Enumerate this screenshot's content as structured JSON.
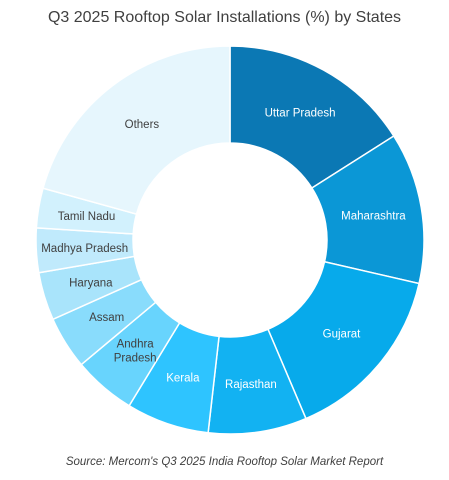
{
  "chart_data": {
    "type": "donut",
    "title": "Q3 2025 Rooftop Solar Installations (%) by States",
    "source": "Source: Mercom's Q3 2025 India Rooftop Solar Market Report",
    "legend": "none",
    "slices": [
      {
        "label": "Uttar Pradesh",
        "value": 16.0,
        "color": "#0b78b4",
        "label_color": "#ffffff"
      },
      {
        "label": "Maharashtra",
        "value": 12.6,
        "color": "#0b97d6",
        "label_color": "#ffffff"
      },
      {
        "label": "Gujarat",
        "value": 15.0,
        "color": "#07aaeb",
        "label_color": "#ffffff"
      },
      {
        "label": "Rajasthan",
        "value": 8.2,
        "color": "#12b2f2",
        "label_color": "#ffffff"
      },
      {
        "label": "Kerala",
        "value": 6.9,
        "color": "#2ec4ff",
        "label_color": "#ffffff"
      },
      {
        "label": "Andhra Pradesh",
        "value": 5.2,
        "color": "#68d4fd",
        "label_color": "#404040"
      },
      {
        "label": "Assam",
        "value": 4.4,
        "color": "#89dcfc",
        "label_color": "#404040"
      },
      {
        "label": "Haryana",
        "value": 4.0,
        "color": "#a9e4fb",
        "label_color": "#404040"
      },
      {
        "label": "Madhya Pradesh",
        "value": 3.7,
        "color": "#c0eafc",
        "label_color": "#404040"
      },
      {
        "label": "Tamil Nadu",
        "value": 3.3,
        "color": "#d2f1fd",
        "label_color": "#404040"
      },
      {
        "label": "Others",
        "value": 20.7,
        "color": "#e6f6fd",
        "label_color": "#404040"
      }
    ]
  }
}
